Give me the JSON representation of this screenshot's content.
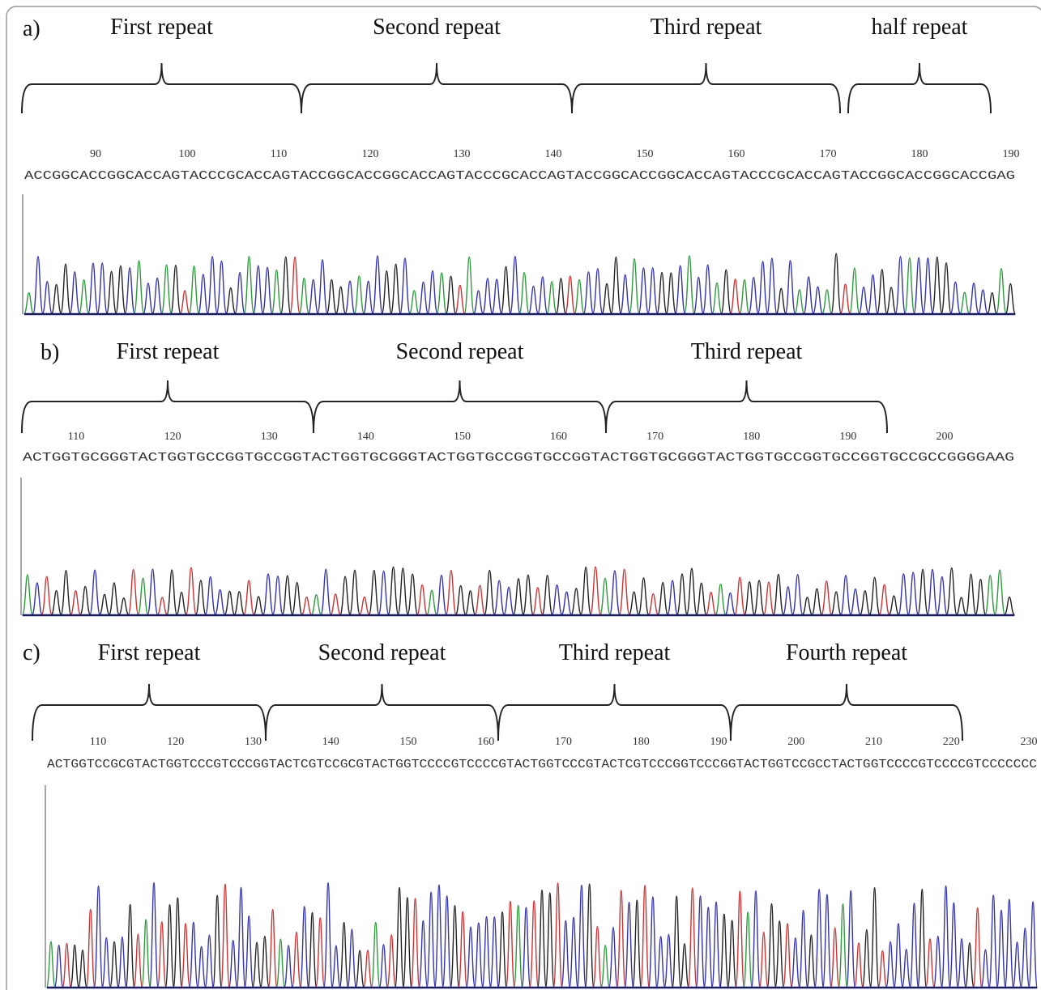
{
  "panels": [
    {
      "label": "a)",
      "repeats": [
        "First repeat",
        "Second repeat",
        "Third repeat",
        "half repeat"
      ],
      "positions": [
        "90",
        "100",
        "110",
        "120",
        "130",
        "140",
        "150",
        "160",
        "170",
        "180",
        "190"
      ],
      "sequence": "ACCGGCACCGGCACCAGTACCCGCACCAGTACCGGCACCGGCACCAGTACCCGCACCAGTACCGGCACCGGCACCAGTACCCGCACCAGTACCGGCACCGGCACCGAG"
    },
    {
      "label": "b)",
      "repeats": [
        "First repeat",
        "Second repeat",
        "Third repeat"
      ],
      "positions": [
        "110",
        "120",
        "130",
        "140",
        "150",
        "160",
        "170",
        "180",
        "190",
        "200"
      ],
      "sequence": "ACTGGTGCGGGTACTGGTGCCGGTGCCGGTACTGGTGCGGGTACTGGTGCCGGTGCCGGTACTGGTGCGGGTACTGGTGCCGGTGCCGGTGCCGCCGGGGAAG"
    },
    {
      "label": "c)",
      "repeats": [
        "First repeat",
        "Second repeat",
        "Third repeat",
        "Fourth repeat"
      ],
      "positions": [
        "110",
        "120",
        "130",
        "140",
        "150",
        "160",
        "170",
        "180",
        "190",
        "200",
        "210",
        "220",
        "230"
      ],
      "sequence": "ACTGGTCCGCGTACTGGTCCCGTCCCGGTACTCGTCCGCGTACTGGTCCCCGTCCCCGTACTGGTCCCGTACTCGTCCCGGTCCCGGTACTGGTCCGCCTACTGGTCCCCGTCCCCGTCCCCCCC"
    }
  ]
}
